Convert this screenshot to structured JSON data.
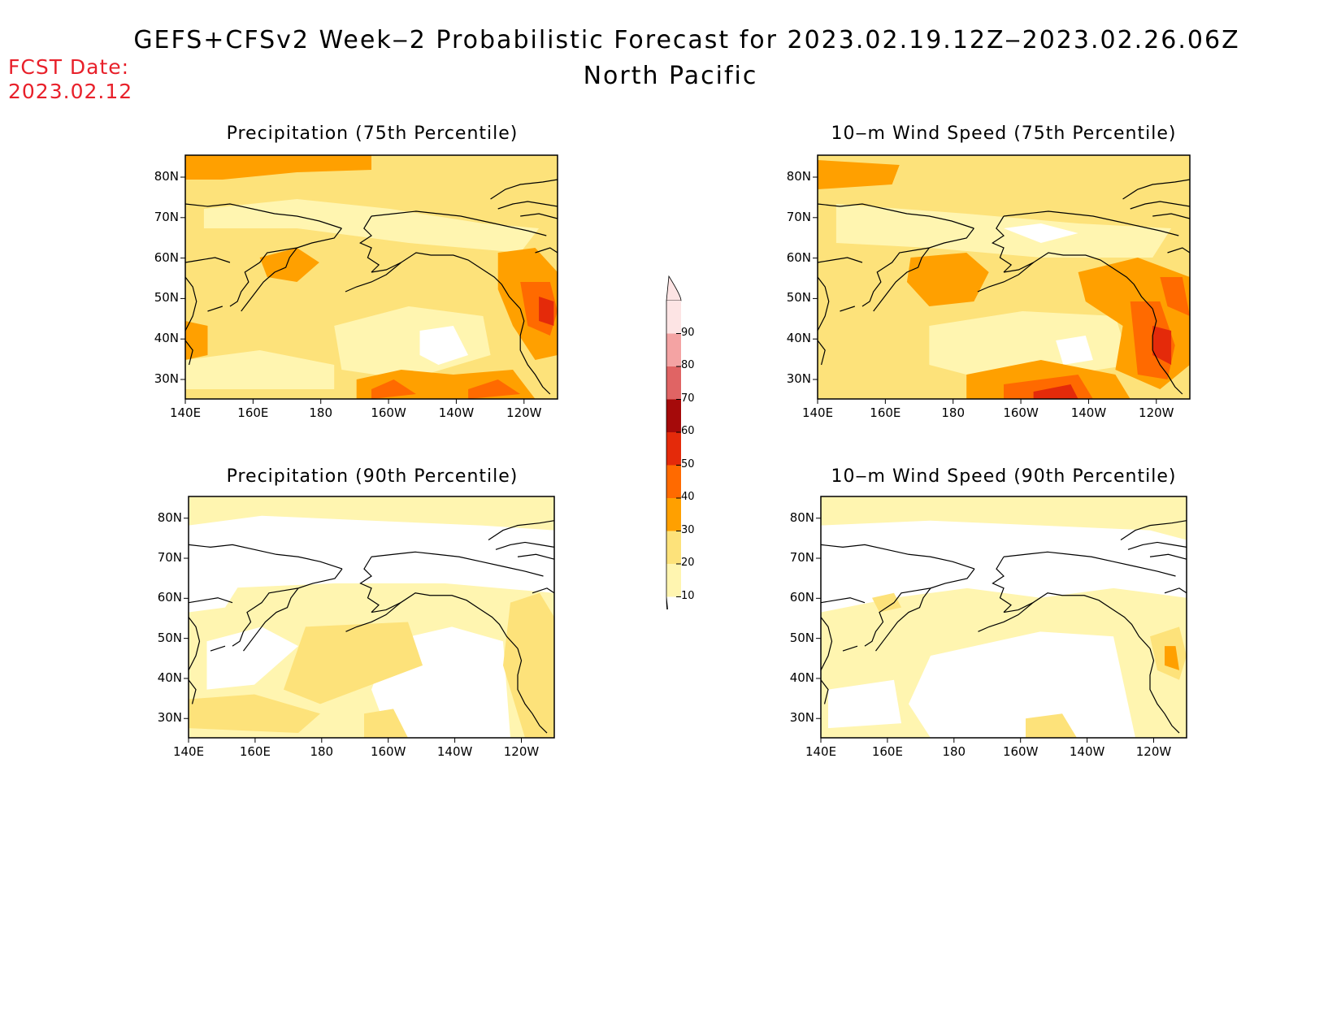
{
  "header": {
    "title": "GEFS+CFSv2 Week‒2 Probabilistic Forecast for 2023.02.19.12Z‒2023.02.26.06Z",
    "subtitle": "North Pacific",
    "fcst_label": "FCST Date:",
    "fcst_date": "2023.02.12"
  },
  "panels": [
    {
      "id": "precip-75",
      "title": "Precipitation (75th Percentile)"
    },
    {
      "id": "wind-75",
      "title": "10‒m Wind Speed (75th Percentile)"
    },
    {
      "id": "precip-90",
      "title": "Precipitation (90th Percentile)"
    },
    {
      "id": "wind-90",
      "title": "10‒m Wind Speed (90th Percentile)"
    }
  ],
  "axes": {
    "y_ticks": [
      "80N",
      "70N",
      "60N",
      "50N",
      "40N",
      "30N"
    ],
    "x_ticks": [
      "140E",
      "160E",
      "180",
      "160W",
      "140W",
      "120W"
    ]
  },
  "colorbar": {
    "labels": [
      "90",
      "80",
      "70",
      "60",
      "50",
      "40",
      "30",
      "20",
      "10"
    ],
    "colors": [
      "#fde4e4",
      "#f4a3a3",
      "#e06464",
      "#a50a0a",
      "#e42a0a",
      "#ff6a00",
      "#ffa000",
      "#fde27a",
      "#fff5b0"
    ]
  }
}
